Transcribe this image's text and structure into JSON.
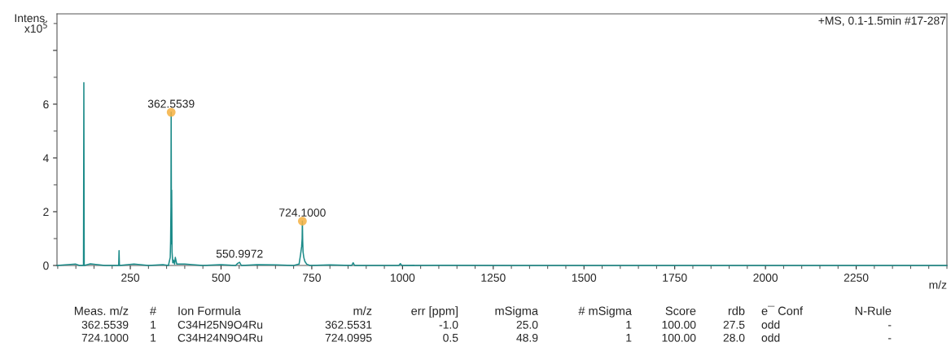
{
  "chart_data": {
    "type": "line",
    "xlabel": "m/z",
    "ylabel": "Intens.\nx10$^{5}$",
    "xlim": [
      48,
      2500
    ],
    "ylim": [
      0,
      9.36
    ],
    "xticks": [
      250,
      500,
      750,
      1000,
      1250,
      1500,
      1750,
      2000,
      2250
    ],
    "yticks": [
      0,
      2,
      4,
      6,
      {
        "value": 8,
        "label": null
      }
    ],
    "grid": false,
    "legend": false,
    "series": [
      {
        "color": "#1a8a88",
        "x": [
          48,
          100,
          110,
          121,
          122,
          123,
          140,
          180,
          218,
          219,
          220,
          260,
          300,
          340,
          355,
          360,
          361,
          362,
          362.55,
          363.5,
          364,
          365,
          366,
          367,
          369,
          372,
          374,
          378,
          400,
          450,
          500,
          540,
          546,
          551,
          556,
          600,
          650,
          700,
          715,
          719,
          722,
          723.5,
          724.1,
          725,
          726,
          728,
          731,
          736,
          745,
          800,
          860,
          864,
          868,
          990,
          994,
          998,
          1100,
          1300,
          1500,
          1750,
          2000,
          2250,
          2500
        ],
        "values": [
          0,
          0.05,
          0,
          0,
          6.8,
          0,
          0.06,
          0,
          0,
          0.55,
          0,
          0.05,
          0,
          0.03,
          0,
          0.3,
          0.9,
          2.2,
          5.7,
          0.8,
          2.8,
          0.5,
          0.3,
          0.1,
          0.2,
          0.05,
          0.3,
          0.05,
          0.05,
          0,
          0.03,
          0,
          0.08,
          0.12,
          0,
          0.03,
          0.02,
          0,
          0.05,
          0.4,
          0.7,
          1.0,
          1.65,
          0.9,
          0.5,
          0.3,
          0.15,
          0.05,
          0,
          0.02,
          0,
          0.1,
          0,
          0,
          0.07,
          0,
          0.01,
          0,
          0,
          0,
          0,
          0,
          0
        ]
      },
      {
        "type": "scatter",
        "color": "#f5b041",
        "x": [
          362.5539,
          724.1
        ],
        "values": [
          5.7,
          1.65
        ]
      }
    ],
    "annotations": [
      "+MS, 0.1-1.5min #17-287",
      {
        "text": "362.5539",
        "x": 362.5539,
        "y": 5.7
      },
      {
        "text": "724.1000",
        "x": 724.1,
        "y": 1.65
      },
      {
        "text": "550.9972",
        "x": 551,
        "y": 0.12
      },
      "Meas. m/z",
      "#",
      "Ion Formula",
      "m/z",
      "err [ppm]",
      "mSigma",
      "# mSigma",
      "Score",
      "rdb",
      "e¯ Conf",
      "N-Rule",
      "362.5539",
      "1",
      "C34H25N9O4Ru",
      "362.5531",
      "-1.0",
      "25.0",
      "1",
      "100.00",
      "27.5",
      "odd",
      "-",
      "724.1000",
      "1",
      "C34H24N9O4Ru",
      "724.0995",
      "0.5",
      "48.9",
      "1",
      "100.00",
      "28.0",
      "odd",
      "-"
    ]
  }
}
